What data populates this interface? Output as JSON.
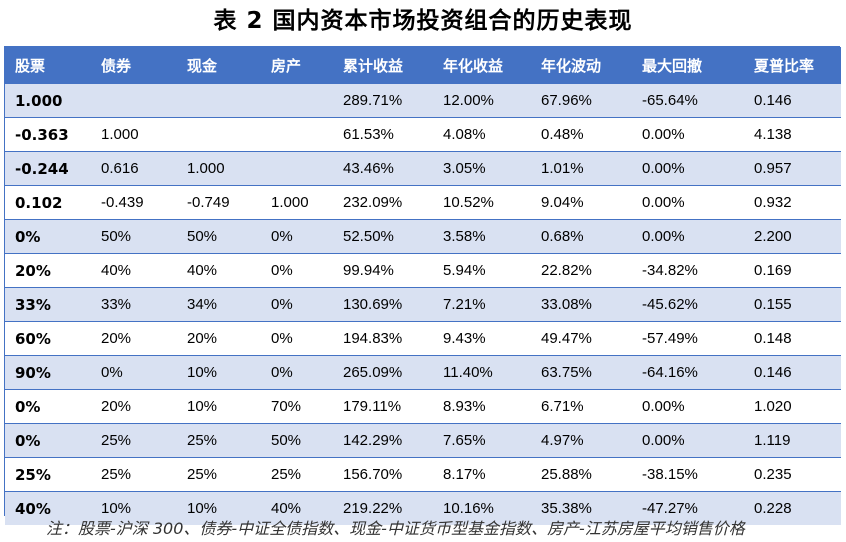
{
  "title": "表 2  国内资本市场投资组合的历史表现",
  "table": {
    "headers": [
      "股票",
      "债券",
      "现金",
      "房产",
      "累计收益",
      "年化收益",
      "年化波动",
      "最大回撤",
      "夏普比率"
    ],
    "rows": [
      [
        "1.000",
        "",
        "",
        "",
        "289.71%",
        "12.00%",
        "67.96%",
        "-65.64%",
        "0.146"
      ],
      [
        "-0.363",
        "1.000",
        "",
        "",
        "61.53%",
        "4.08%",
        "0.48%",
        "0.00%",
        "4.138"
      ],
      [
        "-0.244",
        "0.616",
        "1.000",
        "",
        "43.46%",
        "3.05%",
        "1.01%",
        "0.00%",
        "0.957"
      ],
      [
        "0.102",
        "-0.439",
        "-0.749",
        "1.000",
        "232.09%",
        "10.52%",
        "9.04%",
        "0.00%",
        "0.932"
      ],
      [
        "0%",
        "50%",
        "50%",
        "0%",
        "52.50%",
        "3.58%",
        "0.68%",
        "0.00%",
        "2.200"
      ],
      [
        "20%",
        "40%",
        "40%",
        "0%",
        "99.94%",
        "5.94%",
        "22.82%",
        "-34.82%",
        "0.169"
      ],
      [
        "33%",
        "33%",
        "34%",
        "0%",
        "130.69%",
        "7.21%",
        "33.08%",
        "-45.62%",
        "0.155"
      ],
      [
        "60%",
        "20%",
        "20%",
        "0%",
        "194.83%",
        "9.43%",
        "49.47%",
        "-57.49%",
        "0.148"
      ],
      [
        "90%",
        "0%",
        "10%",
        "0%",
        "265.09%",
        "11.40%",
        "63.75%",
        "-64.16%",
        "0.146"
      ],
      [
        "0%",
        "20%",
        "10%",
        "70%",
        "179.11%",
        "8.93%",
        "6.71%",
        "0.00%",
        "1.020"
      ],
      [
        "0%",
        "25%",
        "25%",
        "50%",
        "142.29%",
        "7.65%",
        "4.97%",
        "0.00%",
        "1.119"
      ],
      [
        "25%",
        "25%",
        "25%",
        "25%",
        "156.70%",
        "8.17%",
        "25.88%",
        "-38.15%",
        "0.235"
      ],
      [
        "40%",
        "10%",
        "10%",
        "40%",
        "219.22%",
        "10.16%",
        "35.38%",
        "-47.27%",
        "0.228"
      ]
    ]
  },
  "note": "注：股票-沪深 300、债券-中证全债指数、现金-中证货币型基金指数、房产-江苏房屋平均销售价格",
  "colors": {
    "header_bg": "#4472C4",
    "header_text": "#FFFFFF",
    "band_bg": "#D9E1F2",
    "rule": "#4472C4"
  }
}
